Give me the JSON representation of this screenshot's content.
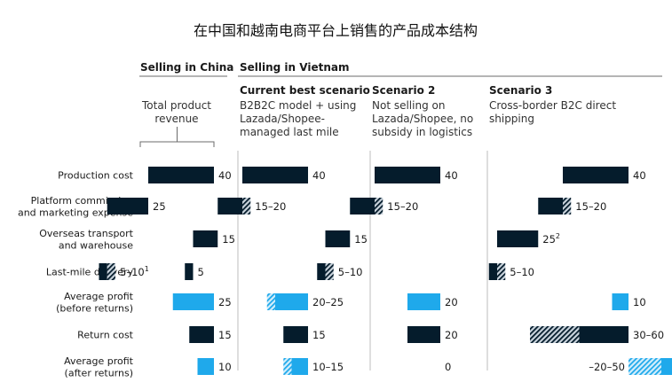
{
  "title": "在中国和越南电商平台上销售的产品成本结构",
  "groups": {
    "china": "Selling in China",
    "vietnam": "Selling in Vietnam"
  },
  "colors": {
    "navy": "#051c2c",
    "blue": "#1fa9eb",
    "hatch_navy": "#3b5a74",
    "hatch_blue": "#7fcaf1",
    "text": "#1a1a1a",
    "rule": "#6b6b6b"
  },
  "chart_data": {
    "type": "bar",
    "subtype": "waterfall",
    "title": "在中国和越南电商平台上销售的产品成本结构",
    "categories": [
      [
        "Production cost"
      ],
      [
        "Platform commission",
        "and marketing expense"
      ],
      [
        "Overseas transport",
        "and warehouse"
      ],
      [
        "Last-mile delivery"
      ],
      [
        "Average profit",
        "(before returns)"
      ],
      [
        "Return cost"
      ],
      [
        "Average profit",
        "(after returns)"
      ]
    ],
    "panels": [
      {
        "group": "Selling in China",
        "header": "",
        "subtitle": [
          "Total product",
          "revenue"
        ],
        "bars": [
          {
            "value": 40,
            "label": "40",
            "color": "navy"
          },
          {
            "value": 25,
            "label": "25",
            "color": "navy"
          },
          {
            "value": 0,
            "label": "",
            "color": "navy"
          },
          {
            "value": 5,
            "high": 10,
            "label": "5–10",
            "sup": "1",
            "color": "navy"
          },
          {
            "value": 25,
            "label": "25",
            "color": "blue"
          },
          {
            "value": 15,
            "label": "15",
            "color": "navy"
          },
          {
            "value": 10,
            "label": "10",
            "color": "blue"
          }
        ]
      },
      {
        "group": "Selling in Vietnam",
        "header": "Current best scenario",
        "subtitle": [
          "B2B2C model + using",
          "Lazada/Shopee-",
          "managed last mile"
        ],
        "bars": [
          {
            "value": 40,
            "label": "40",
            "color": "navy"
          },
          {
            "value": 15,
            "high": 20,
            "label": "15–20",
            "color": "navy"
          },
          {
            "value": 15,
            "label": "15",
            "color": "navy"
          },
          {
            "value": 5,
            "label": "5",
            "color": "navy"
          },
          {
            "value": 20,
            "high": 25,
            "label": "20–25",
            "color": "blue"
          },
          {
            "value": 15,
            "label": "15",
            "color": "navy"
          },
          {
            "value": 10,
            "high": 15,
            "label": "10–15",
            "color": "blue"
          }
        ]
      },
      {
        "group": "Selling in Vietnam",
        "header": "Scenario 2",
        "subtitle": [
          "Not selling on",
          "Lazada/Shopee, no",
          "subsidy in logistics"
        ],
        "bars": [
          {
            "value": 40,
            "label": "40",
            "color": "navy"
          },
          {
            "value": 15,
            "high": 20,
            "label": "15–20",
            "color": "navy"
          },
          {
            "value": 15,
            "label": "15",
            "color": "navy"
          },
          {
            "value": 5,
            "high": 10,
            "label": "5–10",
            "color": "navy"
          },
          {
            "value": 20,
            "label": "20",
            "color": "blue"
          },
          {
            "value": 20,
            "label": "20",
            "color": "navy"
          },
          {
            "value": 0,
            "label": "0",
            "color": "blue"
          }
        ]
      },
      {
        "group": "Selling in Vietnam",
        "header": "Scenario 3",
        "subtitle": [
          "Cross-border B2C direct",
          "shipping"
        ],
        "bars": [
          {
            "value": 40,
            "label": "40",
            "color": "navy"
          },
          {
            "value": 15,
            "high": 20,
            "label": "15–20",
            "color": "navy"
          },
          {
            "value": 25,
            "label": "25",
            "sup": "2",
            "color": "navy"
          },
          {
            "value": 5,
            "high": 10,
            "label": "5–10",
            "color": "navy"
          },
          {
            "value": 10,
            "label": "10",
            "color": "blue"
          },
          {
            "value": 30,
            "high": 60,
            "label": "30–60",
            "color": "navy",
            "extends_left": true
          },
          {
            "value": -20,
            "high": -50,
            "label": "–20–50",
            "color": "blue",
            "label_left": true
          }
        ]
      }
    ]
  }
}
